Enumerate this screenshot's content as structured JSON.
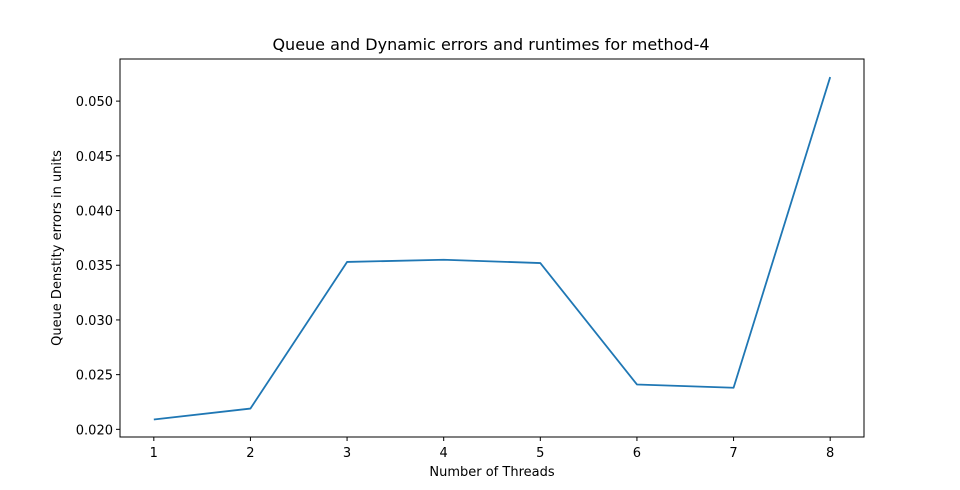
{
  "chart_data": {
    "type": "line",
    "title": "Queue and Dynamic errors and runtimes for method-4",
    "xlabel": "Number of Threads",
    "ylabel": "Queue Denstity errors in units",
    "x": [
      1,
      2,
      3,
      4,
      5,
      6,
      7,
      8
    ],
    "series": [
      {
        "values": [
          0.0209,
          0.0219,
          0.0353,
          0.0355,
          0.0352,
          0.0241,
          0.0238,
          0.0522
        ]
      }
    ],
    "xticks": [
      "1",
      "2",
      "3",
      "4",
      "5",
      "6",
      "7",
      "8"
    ],
    "yticks": [
      "0.020",
      "0.025",
      "0.030",
      "0.035",
      "0.040",
      "0.045",
      "0.050"
    ],
    "ytick_values": [
      0.02,
      0.025,
      0.03,
      0.035,
      0.04,
      0.045,
      0.05
    ],
    "xlim": [
      0.65,
      8.35
    ],
    "ylim": [
      0.0193,
      0.05385
    ],
    "grid": false,
    "line_color": "#1f77b4"
  }
}
